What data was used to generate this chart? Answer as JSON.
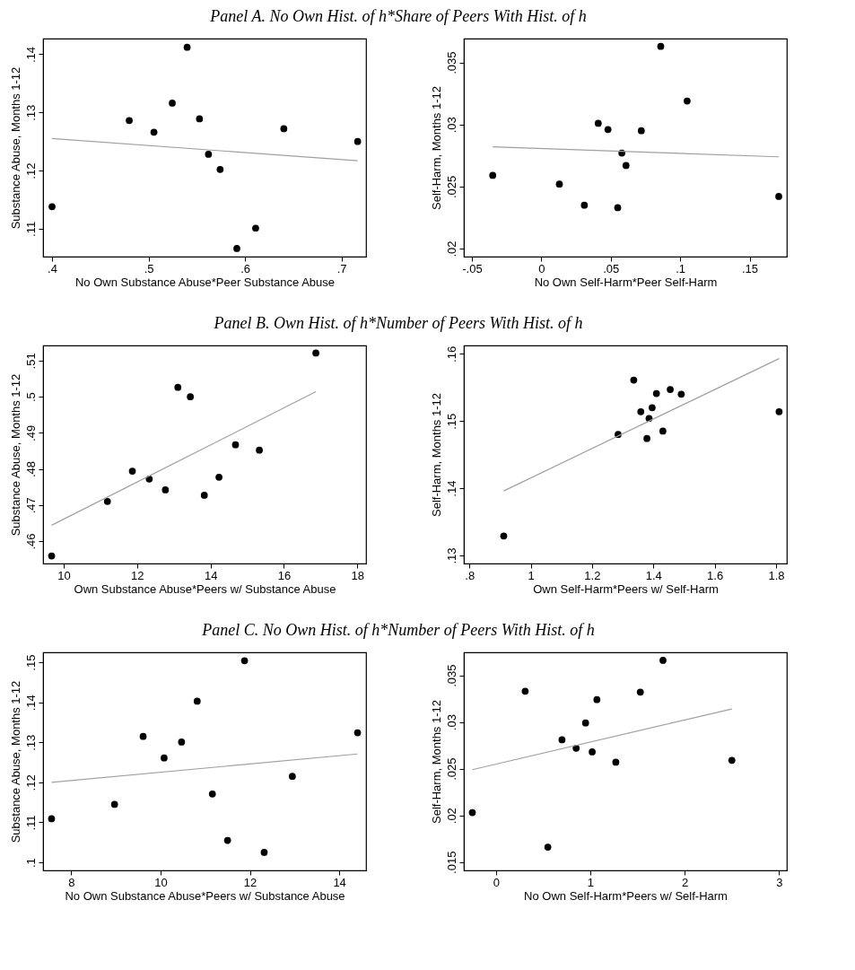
{
  "chart_data": [
    {
      "type": "scatter",
      "title": "Panel A. No Own Hist. of h*Share of Peers With Hist. of h",
      "xlabel": "No Own Substance Abuse*Peer Substance Abuse",
      "ylabel": "Substance Abuse, Months 1-12",
      "grid": false,
      "xlim": [
        0.3907,
        0.7254
      ],
      "ylim": [
        0.1052,
        0.1427
      ],
      "xticks": [
        {
          "value": 0.4,
          "label": ".4"
        },
        {
          "value": 0.5,
          "label": ".5"
        },
        {
          "value": 0.6,
          "label": ".6"
        },
        {
          "value": 0.7,
          "label": ".7"
        }
      ],
      "yticks": [
        {
          "value": 0.11,
          "label": ".11"
        },
        {
          "value": 0.12,
          "label": ".12"
        },
        {
          "value": 0.13,
          "label": ".13"
        },
        {
          "value": 0.14,
          "label": ".14"
        }
      ],
      "series": [
        {
          "marker": "circle",
          "color": "#000000",
          "x": [
            0.4,
            0.48,
            0.5056,
            0.5246,
            0.54,
            0.5528,
            0.5621,
            0.5742,
            0.5915,
            0.611,
            0.6402,
            0.7167
          ],
          "values": [
            0.1138,
            0.1286,
            0.1266,
            0.1316,
            0.1412,
            0.1289,
            0.1228,
            0.1202,
            0.1066,
            0.1101,
            0.1272,
            0.125
          ]
        },
        {
          "type": "line",
          "marker": "none",
          "color": "#a0a0a0",
          "line_style": "solid",
          "x": [
            0.4,
            0.7167
          ],
          "values": [
            0.1255,
            0.1217
          ]
        }
      ]
    },
    {
      "type": "scatter",
      "xlabel": "No Own Self-Harm*Peer Self-Harm",
      "ylabel": "Self-Harm, Months 1-12",
      "grid": false,
      "xlim": [
        -0.0558,
        0.1768
      ],
      "ylim": [
        0.01935,
        0.03693
      ],
      "xticks": [
        {
          "value": -0.05,
          "label": "-.05"
        },
        0,
        {
          "value": 0.05,
          "label": ".05"
        },
        {
          "value": 0.1,
          "label": ".1"
        },
        {
          "value": 0.15,
          "label": ".15"
        }
      ],
      "yticks": [
        {
          "value": 0.02,
          "label": ".02"
        },
        {
          "value": 0.025,
          "label": ".025"
        },
        {
          "value": 0.03,
          "label": ".03"
        },
        {
          "value": 0.035,
          "label": ".035"
        }
      ],
      "series": [
        {
          "marker": "circle",
          "color": "#000000",
          "x": [
            -0.035,
            0.013,
            0.031,
            0.041,
            0.048,
            0.055,
            0.058,
            0.061,
            0.072,
            0.086,
            0.105,
            0.171
          ],
          "values": [
            0.0259,
            0.0252,
            0.0235,
            0.0301,
            0.0296,
            0.0233,
            0.0277,
            0.0267,
            0.0295,
            0.0363,
            0.0319,
            0.0242
          ]
        },
        {
          "type": "line",
          "marker": "none",
          "color": "#a0a0a0",
          "line_style": "solid",
          "x": [
            -0.035,
            0.171
          ],
          "values": [
            0.0282,
            0.0274
          ]
        }
      ]
    },
    {
      "type": "scatter",
      "title": "Panel B. Own Hist. of h*Number of Peers With Hist. of h",
      "xlabel": "Own Substance Abuse*Peers w/ Substance Abuse",
      "ylabel": "Substance Abuse, Months 1-12",
      "grid": false,
      "xlim": [
        9.437,
        18.237
      ],
      "ylim": [
        0.4538,
        0.5142
      ],
      "xticks": [
        10,
        12,
        14,
        16,
        18
      ],
      "yticks": [
        {
          "value": 0.46,
          "label": ".46"
        },
        {
          "value": 0.47,
          "label": ".47"
        },
        {
          "value": 0.48,
          "label": ".48"
        },
        {
          "value": 0.49,
          "label": ".49"
        },
        {
          "value": 0.5,
          "label": ".5"
        },
        {
          "value": 0.51,
          "label": ".51"
        }
      ],
      "series": [
        {
          "marker": "circle",
          "color": "#000000",
          "x": [
            9.67,
            11.19,
            11.87,
            12.33,
            12.77,
            13.11,
            13.45,
            13.83,
            14.23,
            14.68,
            15.33,
            16.87
          ],
          "values": [
            0.4559,
            0.471,
            0.4794,
            0.4772,
            0.4742,
            0.5026,
            0.5,
            0.4727,
            0.4777,
            0.4867,
            0.4852,
            0.5121
          ]
        },
        {
          "type": "line",
          "marker": "none",
          "color": "#a0a0a0",
          "line_style": "solid",
          "x": [
            9.67,
            16.87
          ],
          "values": [
            0.4644,
            0.5014
          ]
        }
      ]
    },
    {
      "type": "scatter",
      "xlabel": "Own Self-Harm*Peers w/ Self-Harm",
      "ylabel": "Self-Harm, Months 1-12",
      "grid": false,
      "xlim": [
        0.7819,
        1.8352
      ],
      "ylim": [
        0.1288,
        0.16125
      ],
      "xticks": [
        {
          "value": 0.8,
          "label": ".8"
        },
        1,
        1.2,
        1.4,
        1.6,
        1.8
      ],
      "yticks": [
        {
          "value": 0.13,
          "label": ".13"
        },
        {
          "value": 0.14,
          "label": ".14"
        },
        {
          "value": 0.15,
          "label": ".15"
        },
        {
          "value": 0.16,
          "label": ".16"
        }
      ],
      "series": [
        {
          "marker": "circle",
          "color": "#000000",
          "x": [
            0.912,
            1.285,
            1.336,
            1.359,
            1.379,
            1.386,
            1.396,
            1.41,
            1.431,
            1.455,
            1.491,
            1.81
          ],
          "values": [
            0.1329,
            0.148,
            0.1561,
            0.1514,
            0.1474,
            0.1504,
            0.152,
            0.1541,
            0.1485,
            0.1547,
            0.154,
            0.1514
          ]
        },
        {
          "type": "line",
          "marker": "none",
          "color": "#a0a0a0",
          "line_style": "solid",
          "x": [
            0.912,
            1.81
          ],
          "values": [
            0.1396,
            0.1593
          ]
        }
      ]
    },
    {
      "type": "scatter",
      "title": "Panel C. No Own Hist. of h*Number of Peers With Hist. of h",
      "xlabel": "No Own Substance Abuse*Peers w/ Substance Abuse",
      "ylabel": "Substance Abuse, Months 1-12",
      "grid": false,
      "xlim": [
        7.37,
        14.6
      ],
      "ylim": [
        0.098,
        0.1525
      ],
      "xticks": [
        8,
        10,
        12,
        14
      ],
      "yticks": [
        {
          "value": 0.1,
          "label": ".1"
        },
        {
          "value": 0.11,
          "label": ".11"
        },
        {
          "value": 0.12,
          "label": ".12"
        },
        {
          "value": 0.13,
          "label": ".13"
        },
        {
          "value": 0.14,
          "label": ".14"
        },
        {
          "value": 0.15,
          "label": ".15"
        }
      ],
      "series": [
        {
          "marker": "circle",
          "color": "#000000",
          "x": [
            7.56,
            8.97,
            9.61,
            10.08,
            10.47,
            10.82,
            11.16,
            11.5,
            11.88,
            12.32,
            12.95,
            14.41
          ],
          "values": [
            0.1109,
            0.1145,
            0.1315,
            0.1261,
            0.1301,
            0.1403,
            0.1171,
            0.1055,
            0.1504,
            0.1025,
            0.1215,
            0.1324
          ]
        },
        {
          "type": "line",
          "marker": "none",
          "color": "#a0a0a0",
          "line_style": "solid",
          "x": [
            7.56,
            14.41
          ],
          "values": [
            0.12,
            0.1271
          ]
        }
      ]
    },
    {
      "type": "scatter",
      "xlabel": "No Own Self-Harm*Peers w/ Self-Harm",
      "ylabel": "Self-Harm, Months 1-12",
      "grid": false,
      "xlim": [
        -0.34,
        3.082
      ],
      "ylim": [
        0.01411,
        0.03746
      ],
      "xticks": [
        0,
        1,
        2,
        3
      ],
      "yticks": [
        {
          "value": 0.015,
          "label": ".015"
        },
        {
          "value": 0.02,
          "label": ".02"
        },
        {
          "value": 0.025,
          "label": ".025"
        },
        {
          "value": 0.03,
          "label": ".03"
        },
        {
          "value": 0.035,
          "label": ".035"
        }
      ],
      "series": [
        {
          "marker": "circle",
          "color": "#000000",
          "x": [
            -0.25,
            0.31,
            0.55,
            0.7,
            0.85,
            0.95,
            1.02,
            1.07,
            1.27,
            1.53,
            1.77,
            2.5
          ],
          "values": [
            0.0203,
            0.0333,
            0.0166,
            0.0281,
            0.0272,
            0.0299,
            0.0268,
            0.0324,
            0.0257,
            0.0332,
            0.0366,
            0.0259
          ]
        },
        {
          "type": "line",
          "marker": "none",
          "color": "#a0a0a0",
          "line_style": "solid",
          "x": [
            -0.25,
            2.5
          ],
          "values": [
            0.0249,
            0.0314
          ]
        }
      ]
    }
  ]
}
